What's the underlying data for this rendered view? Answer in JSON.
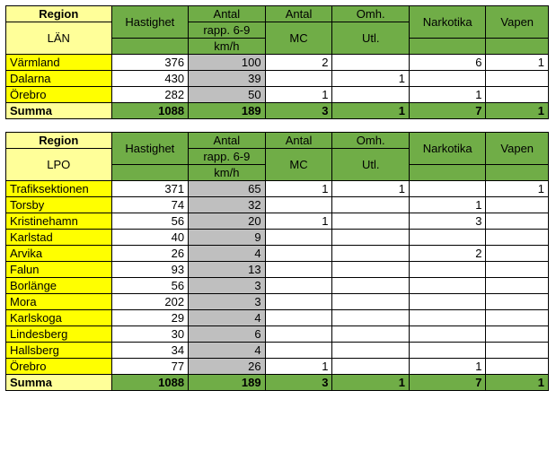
{
  "colors": {
    "corner_bg": "#ffff99",
    "header_bg": "#70ad47",
    "row_label_bg": "#ffff00",
    "gray_bg": "#bfbfbf",
    "border": "#000000",
    "page_bg": "#ffffff"
  },
  "columns": {
    "region": "Region",
    "c1_top": "Hastighet",
    "c2_top": "Antal",
    "c2_bot": "rapp.   6-9",
    "c2_sub": "km/h",
    "c3_top": "Antal",
    "c3_bot": "MC",
    "c4_top": "Omh.",
    "c4_bot": "Utl.",
    "c5_top": "Narkotika",
    "c6_top": "Vapen"
  },
  "table1": {
    "sublabel": "LÄN",
    "rows": [
      {
        "label": "Värmland",
        "c1": "376",
        "c2": "100",
        "c3": "2",
        "c4": "",
        "c5": "6",
        "c6": "1"
      },
      {
        "label": "Dalarna",
        "c1": "430",
        "c2": "39",
        "c3": "",
        "c4": "1",
        "c5": "",
        "c6": ""
      },
      {
        "label": "Örebro",
        "c1": "282",
        "c2": "50",
        "c3": "1",
        "c4": "",
        "c5": "1",
        "c6": ""
      }
    ],
    "sum": {
      "label": "Summa",
      "c1": "1088",
      "c2": "189",
      "c3": "3",
      "c4": "1",
      "c5": "7",
      "c6": "1"
    }
  },
  "table2": {
    "sublabel": "LPO",
    "rows": [
      {
        "label": "Trafiksektionen",
        "c1": "371",
        "c2": "65",
        "c3": "1",
        "c4": "1",
        "c5": "",
        "c6": "1"
      },
      {
        "label": "Torsby",
        "c1": "74",
        "c2": "32",
        "c3": "",
        "c4": "",
        "c5": "1",
        "c6": ""
      },
      {
        "label": "Kristinehamn",
        "c1": "56",
        "c2": "20",
        "c3": "1",
        "c4": "",
        "c5": "3",
        "c6": ""
      },
      {
        "label": "Karlstad",
        "c1": "40",
        "c2": "9",
        "c3": "",
        "c4": "",
        "c5": "",
        "c6": ""
      },
      {
        "label": "Arvika",
        "c1": "26",
        "c2": "4",
        "c3": "",
        "c4": "",
        "c5": "2",
        "c6": ""
      },
      {
        "label": "Falun",
        "c1": "93",
        "c2": "13",
        "c3": "",
        "c4": "",
        "c5": "",
        "c6": ""
      },
      {
        "label": "Borlänge",
        "c1": "56",
        "c2": "3",
        "c3": "",
        "c4": "",
        "c5": "",
        "c6": ""
      },
      {
        "label": "Mora",
        "c1": "202",
        "c2": "3",
        "c3": "",
        "c4": "",
        "c5": "",
        "c6": ""
      },
      {
        "label": "Karlskoga",
        "c1": "29",
        "c2": "4",
        "c3": "",
        "c4": "",
        "c5": "",
        "c6": ""
      },
      {
        "label": "Lindesberg",
        "c1": "30",
        "c2": "6",
        "c3": "",
        "c4": "",
        "c5": "",
        "c6": ""
      },
      {
        "label": "Hallsberg",
        "c1": "34",
        "c2": "4",
        "c3": "",
        "c4": "",
        "c5": "",
        "c6": ""
      },
      {
        "label": "Örebro",
        "c1": "77",
        "c2": "26",
        "c3": "1",
        "c4": "",
        "c5": "1",
        "c6": ""
      }
    ],
    "sum": {
      "label": "Summa",
      "c1": "1088",
      "c2": "189",
      "c3": "3",
      "c4": "1",
      "c5": "7",
      "c6": "1"
    }
  }
}
